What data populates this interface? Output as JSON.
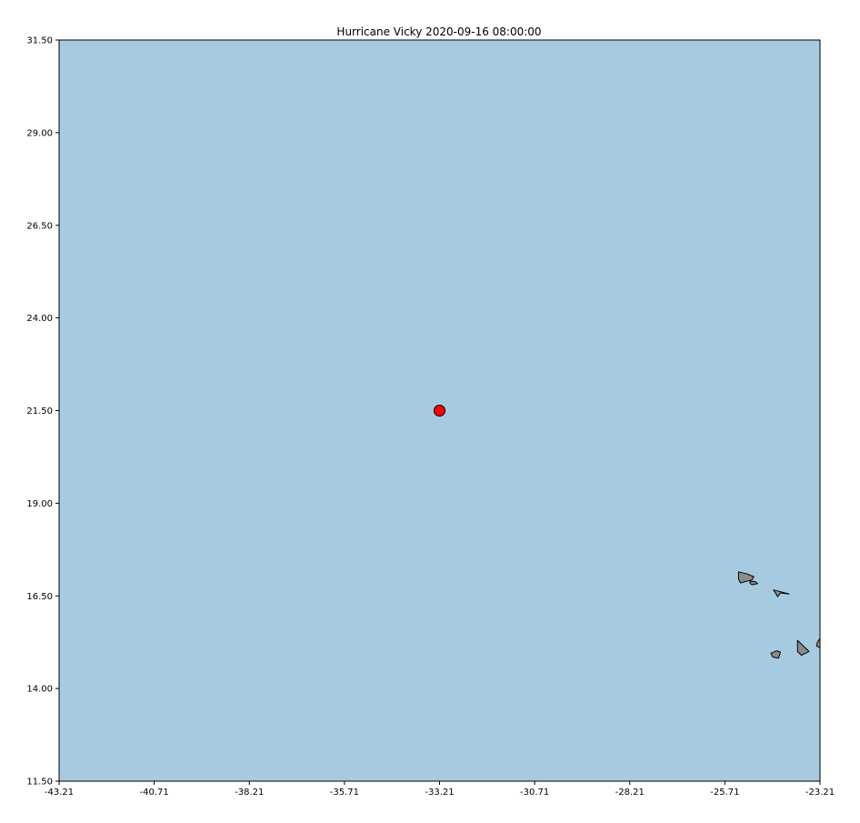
{
  "map": {
    "title": "Hurricane Vicky 2020-09-16 08:00:00",
    "ocean_color": "#a6cadf",
    "land_color": "#8c8c8c",
    "border_color": "#000000",
    "storm_marker_color": "#ff0000",
    "x_ticks": [
      "-43.21",
      "-40.71",
      "-38.21",
      "-35.71",
      "-33.21",
      "-30.71",
      "-28.21",
      "-25.71",
      "-23.21"
    ],
    "y_ticks": [
      "31.50",
      "29.00",
      "26.50",
      "24.00",
      "21.50",
      "19.00",
      "16.50",
      "14.00",
      "11.50"
    ],
    "lon_range": [
      -43.21,
      -23.21
    ],
    "lat_range": [
      11.5,
      31.5
    ],
    "storm_position": {
      "lon": -33.21,
      "lat": 21.5
    },
    "islands": [
      {
        "name": "santo-antao",
        "points": [
          [
            -25.35,
            17.15
          ],
          [
            -25.15,
            17.1
          ],
          [
            -24.95,
            17.02
          ],
          [
            -25.0,
            16.93
          ],
          [
            -25.3,
            16.85
          ],
          [
            -25.35,
            16.95
          ]
        ]
      },
      {
        "name": "sao-vicente",
        "points": [
          [
            -25.05,
            16.9
          ],
          [
            -24.9,
            16.88
          ],
          [
            -24.85,
            16.83
          ],
          0,
          [
            -25.0,
            16.8
          ],
          [
            -25.05,
            16.84
          ]
        ]
      },
      {
        "name": "sao-nicolau",
        "points": [
          [
            -24.43,
            16.66
          ],
          [
            -24.2,
            16.6
          ],
          [
            -24.02,
            16.55
          ],
          [
            -24.25,
            16.58
          ],
          [
            -24.32,
            16.48
          ]
        ]
      },
      {
        "name": "santiago",
        "points": [
          [
            -23.8,
            15.3
          ],
          [
            -23.5,
            15.0
          ],
          [
            -23.7,
            14.9
          ],
          [
            -23.8,
            15.0
          ]
        ]
      },
      {
        "name": "fogo",
        "points": [
          [
            -24.35,
            15.02
          ],
          [
            -24.25,
            14.98
          ],
          [
            -24.3,
            14.82
          ],
          [
            -24.45,
            14.85
          ],
          [
            -24.5,
            14.95
          ]
        ]
      },
      {
        "name": "maio",
        "points": [
          [
            -23.21,
            15.35
          ],
          [
            -23.21,
            15.1
          ],
          [
            -23.3,
            15.15
          ],
          [
            -23.28,
            15.25
          ]
        ]
      }
    ]
  }
}
